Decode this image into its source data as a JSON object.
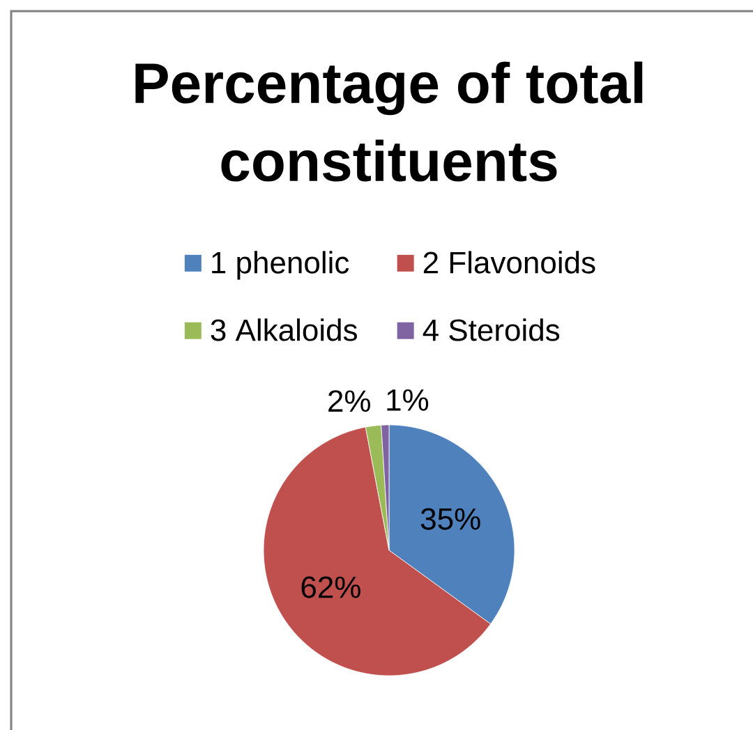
{
  "chart_data": {
    "type": "pie",
    "title": "Percentage of total constituents",
    "categories": [
      "1 phenolic",
      "2 Flavonoids",
      "3 Alkaloids",
      "4 Steroids"
    ],
    "values": [
      35,
      62,
      2,
      1
    ],
    "colors": [
      "#4f81bd",
      "#c0504d",
      "#9bbb59",
      "#8064a2"
    ],
    "value_labels": [
      "35%",
      "62%",
      "2%",
      "1%"
    ],
    "legend": "top"
  }
}
